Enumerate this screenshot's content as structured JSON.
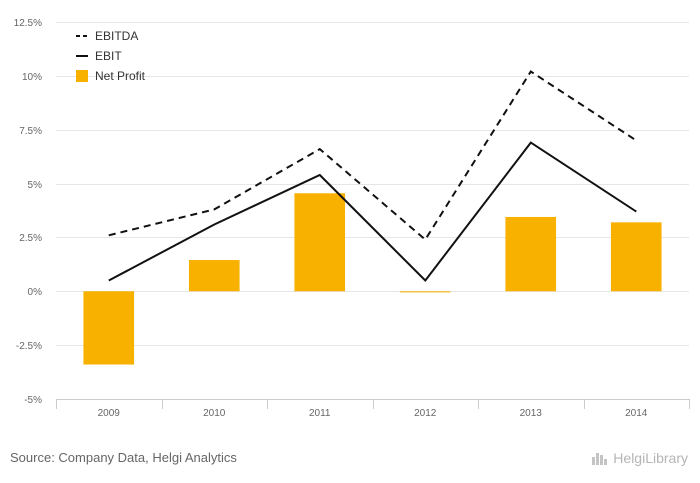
{
  "chart_data": {
    "type": "bar",
    "categories": [
      "2009",
      "2010",
      "2011",
      "2012",
      "2013",
      "2014"
    ],
    "series": [
      {
        "name": "EBITDA",
        "kind": "line",
        "style": "dashed",
        "color": "#111111",
        "values": [
          2.6,
          3.8,
          6.6,
          2.4,
          10.2,
          7.0
        ]
      },
      {
        "name": "EBIT",
        "kind": "line",
        "style": "solid",
        "color": "#111111",
        "values": [
          0.5,
          3.1,
          5.4,
          0.5,
          6.9,
          3.7
        ]
      },
      {
        "name": "Net Profit",
        "kind": "bar",
        "color": "#f9b100",
        "values": [
          -3.4,
          1.45,
          4.55,
          -0.05,
          3.45,
          3.2
        ]
      }
    ],
    "ylim": [
      -5,
      12.5
    ],
    "yticks": [
      12.5,
      10,
      7.5,
      5,
      2.5,
      0,
      -2.5,
      -5
    ],
    "ytick_labels": [
      "12.5%",
      "10%",
      "7.5%",
      "5%",
      "2.5%",
      "0%",
      "-2.5%",
      "-5%"
    ],
    "grid": true,
    "legend_position": "top-left"
  },
  "footer": {
    "source": "Source: Company Data, Helgi Analytics",
    "brand": "HelgiLibrary"
  }
}
